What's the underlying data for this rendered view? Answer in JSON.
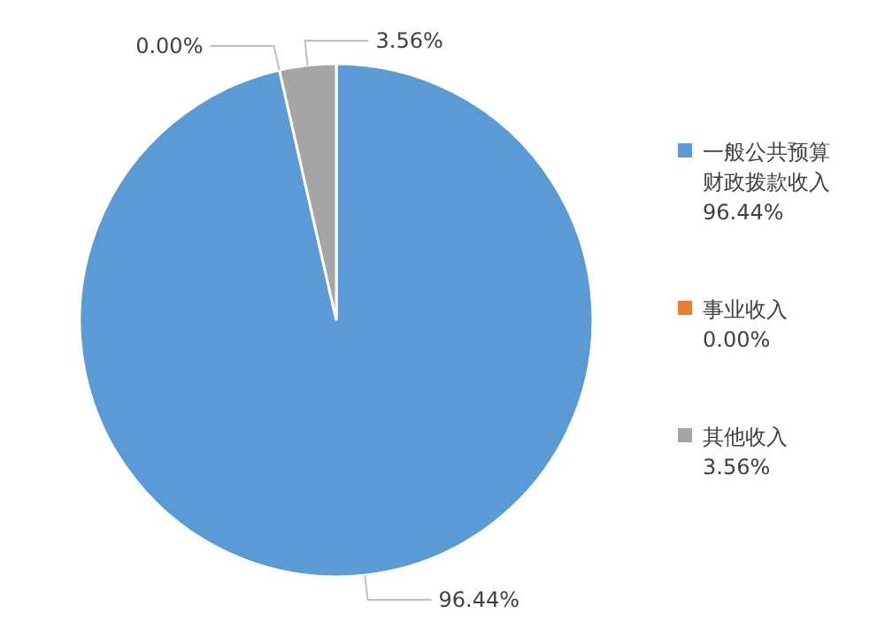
{
  "chart_data": {
    "type": "pie",
    "categories": [
      "一般公共预算财政拨款收入",
      "事业收入",
      "其他收入"
    ],
    "values": [
      96.44,
      0.0,
      3.56
    ],
    "colors": [
      "#5b9bd5",
      "#ed7d31",
      "#a5a5a5"
    ],
    "value_labels": [
      "96.44%",
      "0.00%",
      "3.56%"
    ],
    "legend": "right"
  }
}
